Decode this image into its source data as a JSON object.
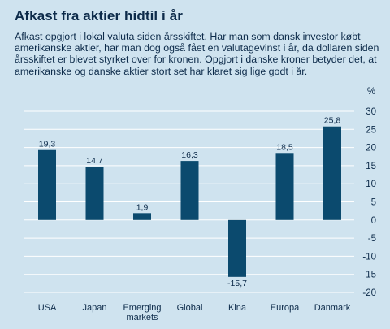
{
  "title": "Afkast fra aktier hidtil i år",
  "subtitle": "Afkast opgjort i lokal valuta siden årsskiftet. Har man som dansk investor købt amerikanske aktier, har man dog også fået en valutagevinst i år, da dollaren siden årsskiftet er blevet styrket over for kronen. Opgjort i danske kroner betyder det, at amerikanske og danske aktier stort set har klaret sig lige godt i år.",
  "colors": {
    "bar": "#0b4a6e",
    "background": "#cfe3ef",
    "gridline": "#ffffff",
    "text": "#0d2b4a"
  },
  "chart_data": {
    "type": "bar",
    "categories": [
      "USA",
      "Japan",
      "Emerging\nmarkets",
      "Global",
      "Kina",
      "Europa",
      "Danmark"
    ],
    "values": [
      19.3,
      14.7,
      1.9,
      16.3,
      -15.7,
      18.5,
      25.8
    ],
    "data_labels": [
      "19,3",
      "14,7",
      "1,9",
      "16,3",
      "-15,7",
      "18,5",
      "25,8"
    ],
    "ylabel": "%",
    "ylim": [
      -20,
      30
    ],
    "yticks": [
      30,
      25,
      20,
      15,
      10,
      5,
      0,
      -5,
      -10,
      -15,
      -20
    ],
    "ytick_labels": [
      "30",
      "25",
      "20",
      "15",
      "10",
      "5",
      "0",
      "-5",
      "-10",
      "-15",
      "-20"
    ],
    "grid": true,
    "y_axis_side": "right"
  }
}
